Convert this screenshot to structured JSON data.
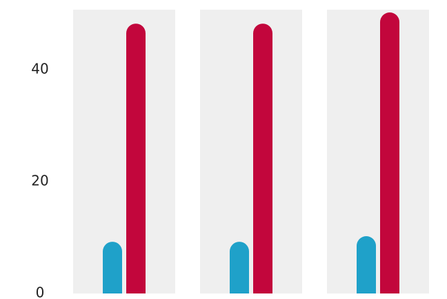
{
  "chart_data": {
    "type": "bar",
    "title": "",
    "xlabel": "",
    "ylabel": "",
    "ylim": [
      0,
      50
    ],
    "yticks": [
      0,
      20,
      40
    ],
    "categories": [
      "",
      "",
      ""
    ],
    "series": [
      {
        "values": [
          9,
          9,
          10
        ],
        "color": "#1fa1c9"
      },
      {
        "values": [
          48,
          48,
          50
        ],
        "color": "#c2063c"
      }
    ],
    "category_band_color": "#efefef",
    "bar_style": "rounded-top",
    "grid": false,
    "legend": "none"
  }
}
